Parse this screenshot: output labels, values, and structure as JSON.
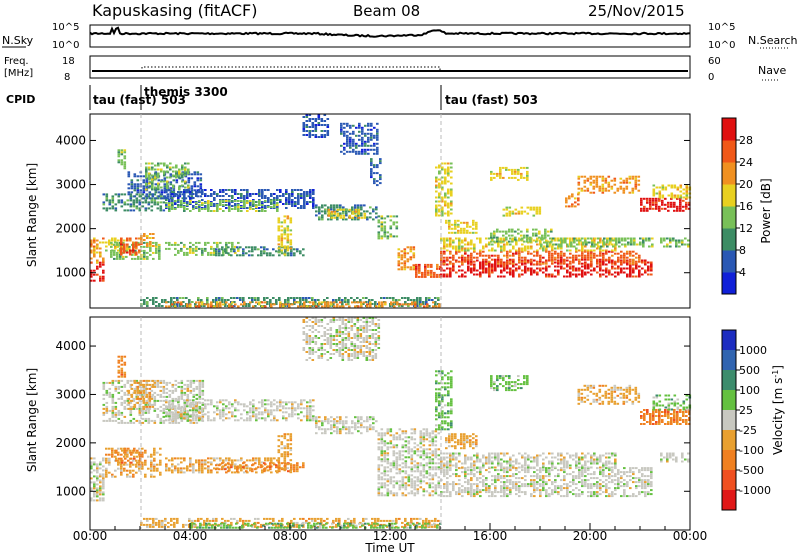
{
  "header": {
    "station": "Kapuskasing (fitACF)",
    "beam": "Beam 08",
    "date": "25/Nov/2015"
  },
  "noise_panel": {
    "left_label": "N.Sky",
    "left_ticks": [
      "10^5",
      "10^0"
    ],
    "right_ticks": [
      "10^5",
      "10^0"
    ],
    "right_label": "N.Search"
  },
  "freq_panel": {
    "left_label_1": "Freq.",
    "left_label_2": "[MHz]",
    "left_ticks": [
      "18",
      "8"
    ],
    "right_ticks": [
      "60",
      "0"
    ],
    "right_label": "Nave"
  },
  "cpid_panel": {
    "label": "CPID",
    "segments": [
      "tau (fast) 503",
      "themis 3300",
      "tau (fast) 503"
    ]
  },
  "colors": {
    "power_scale": [
      "#1020d8",
      "#2a58b4",
      "#3c8c64",
      "#78c058",
      "#e8d020",
      "#f09020",
      "#f05818",
      "#e01010"
    ],
    "velocity_scale": [
      "#1c2cc0",
      "#3064b0",
      "#3c8c6c",
      "#64c040",
      "#c8c8c0",
      "#e8a030",
      "#f08020",
      "#f05020",
      "#e01818"
    ]
  },
  "chart_data": [
    {
      "type": "heatmap",
      "title": "",
      "xlabel": "",
      "ylabel": "Slant Range [km]",
      "y_ticks": [
        "1000",
        "2000",
        "3000",
        "4000"
      ],
      "ylim": [
        200,
        4600
      ],
      "colorbar_label": "Power [dB]",
      "colorbar_ticks": [
        "4",
        "8",
        "12",
        "16",
        "20",
        "24",
        "28"
      ],
      "colorbar_range": [
        0,
        32
      ]
    },
    {
      "type": "heatmap",
      "title": "",
      "xlabel": "Time UT",
      "ylabel": "Slant Range [km]",
      "x_ticks": [
        "00:00",
        "04:00",
        "08:00",
        "12:00",
        "16:00",
        "20:00",
        "00:00"
      ],
      "xlim": [
        0,
        24
      ],
      "y_ticks": [
        "1000",
        "2000",
        "3000",
        "4000"
      ],
      "ylim": [
        200,
        4600
      ],
      "colorbar_label": "Velocity [m s",
      "colorbar_label_sup": "-1",
      "colorbar_ticks": [
        "1000",
        "500",
        "100",
        "25",
        "-25",
        "-100",
        "-500",
        "-1000"
      ]
    }
  ]
}
